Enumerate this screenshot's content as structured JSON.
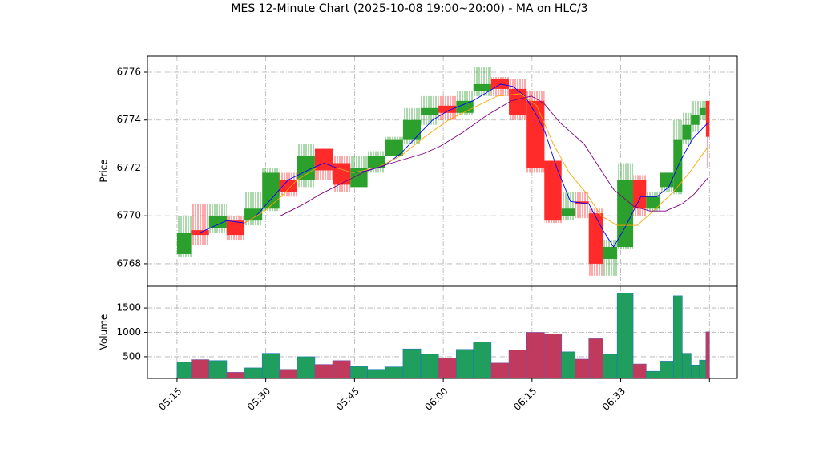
{
  "chart_data": [
    {
      "type": "candlestick",
      "title": "MES 12-Minute Chart (2025-10-08 19:00~20:00) - MA on HLC/3",
      "ylabel": "Price",
      "x": [
        0,
        2.4,
        5.4,
        8.4,
        11.4,
        14.4,
        17.3,
        20.3,
        23.3,
        26.3,
        29.3,
        32.2,
        35.2,
        38.2,
        41.2,
        44.2,
        47.2,
        50.1,
        53.1,
        56.1,
        59.1,
        62.1,
        65.0,
        67.3,
        69.6,
        72.0,
        74.4,
        77.1,
        79.3,
        81.6,
        83.9,
        85.4,
        86.9,
        88.3,
        89.4
      ],
      "open": [
        6768.4,
        6769.4,
        6769.5,
        6769.8,
        6769.8,
        6770.3,
        6771.5,
        6771.5,
        6772.8,
        6772.2,
        6771.2,
        6772.0,
        6772.5,
        6773.2,
        6774.2,
        6774.6,
        6774.3,
        6775.2,
        6775.7,
        6775.3,
        6774.8,
        6772.3,
        6770.0,
        6770.6,
        6770.1,
        6768.2,
        6768.7,
        6771.5,
        6770.3,
        6771.2,
        6771.0,
        6773.2,
        6773.8,
        6774.2,
        6774.8
      ],
      "high": [
        6770.0,
        6770.5,
        6770.5,
        6770.0,
        6771.0,
        6772.0,
        6771.8,
        6773.0,
        6772.8,
        6772.5,
        6772.5,
        6772.7,
        6773.3,
        6774.5,
        6775.0,
        6775.0,
        6775.2,
        6776.2,
        6775.8,
        6775.7,
        6775.2,
        6772.3,
        6771.0,
        6771.0,
        6770.3,
        6769.0,
        6772.2,
        6771.7,
        6771.0,
        6771.8,
        6774.0,
        6774.3,
        6774.8,
        6774.8,
        6774.8
      ],
      "low": [
        6768.3,
        6768.8,
        6769.3,
        6769.0,
        6769.6,
        6770.2,
        6770.8,
        6771.2,
        6771.5,
        6771.0,
        6771.2,
        6771.8,
        6772.5,
        6773.0,
        6773.8,
        6774.0,
        6774.2,
        6775.0,
        6775.0,
        6774.0,
        6771.8,
        6769.7,
        6769.8,
        6769.9,
        6767.5,
        6767.5,
        6768.6,
        6770.0,
        6770.2,
        6771.0,
        6770.9,
        6773.0,
        6773.5,
        6774.0,
        6772.0
      ],
      "close": [
        6769.3,
        6769.2,
        6770.0,
        6769.2,
        6770.3,
        6771.8,
        6771.0,
        6772.5,
        6771.9,
        6771.3,
        6772.0,
        6772.5,
        6773.2,
        6774.0,
        6774.5,
        6774.3,
        6774.8,
        6775.5,
        6775.3,
        6774.2,
        6772.0,
        6769.8,
        6770.3,
        6770.5,
        6768.0,
        6768.7,
        6771.5,
        6770.3,
        6770.8,
        6771.8,
        6773.2,
        6773.8,
        6774.2,
        6774.5,
        6773.3
      ],
      "up_color": "#2ca02c",
      "down_color": "#ff2a2a",
      "series": [
        {
          "color": "#0000ff",
          "x": [
            3.9,
            8.4,
            11.4,
            13.4,
            15.9,
            18.8,
            22.9,
            24.9,
            27.0,
            29.7,
            32.4,
            35.1,
            37.8,
            40.5,
            43.2,
            45.9,
            50.0,
            52.7,
            54.7,
            56.8,
            58.8,
            60.8,
            62.2,
            64.2,
            66.5,
            69.6,
            72.0,
            73.8,
            75.7,
            78.4,
            81.1,
            83.1,
            85.1,
            87.1,
            89.8
          ],
          "values": [
            6769.3,
            6769.8,
            6769.7,
            6770.0,
            6770.7,
            6771.5,
            6772.0,
            6772.2,
            6772.0,
            6771.8,
            6771.9,
            6772.1,
            6772.6,
            6773.3,
            6774.0,
            6774.4,
            6774.8,
            6775.2,
            6775.5,
            6775.4,
            6775.0,
            6774.2,
            6773.5,
            6772.0,
            6770.6,
            6770.5,
            6769.4,
            6768.7,
            6769.5,
            6770.8,
            6770.8,
            6771.2,
            6772.3,
            6773.2,
            6773.9
          ]
        },
        {
          "color": "#ffa500",
          "x": [
            11.4,
            14.8,
            17.6,
            20.3,
            23.6,
            27.0,
            29.7,
            33.7,
            37.8,
            41.9,
            45.9,
            50.0,
            54.1,
            58.1,
            60.8,
            63.6,
            66.3,
            69.0,
            71.7,
            74.4,
            77.8,
            80.5,
            83.9,
            86.6,
            89.8
          ],
          "values": [
            6769.7,
            6770.2,
            6770.8,
            6771.5,
            6772.0,
            6772.0,
            6771.8,
            6772.0,
            6772.5,
            6773.3,
            6774.0,
            6774.5,
            6775.0,
            6775.1,
            6774.6,
            6773.0,
            6771.8,
            6771.0,
            6770.0,
            6769.6,
            6769.6,
            6770.2,
            6771.0,
            6771.8,
            6772.9
          ]
        },
        {
          "color": "#800080",
          "x": [
            17.5,
            21.5,
            24.2,
            28.2,
            32.2,
            37.6,
            41.7,
            44.4,
            48.4,
            52.4,
            56.5,
            59.9,
            62.0,
            64.7,
            68.8,
            73.8,
            77.2,
            79.9,
            82.6,
            85.4,
            87.4,
            89.8
          ],
          "values": [
            6770.0,
            6770.5,
            6770.9,
            6771.4,
            6771.9,
            6772.3,
            6772.6,
            6772.9,
            6773.5,
            6774.2,
            6774.8,
            6775.0,
            6774.7,
            6773.9,
            6773.0,
            6771.1,
            6770.4,
            6770.2,
            6770.2,
            6770.5,
            6770.9,
            6771.6
          ]
        }
      ],
      "xlim": [
        -5,
        94.7
      ],
      "xticks": [
        0,
        15,
        30,
        45,
        60,
        75,
        90
      ],
      "ylim": [
        6767.06,
        6776.67
      ],
      "yticks": [
        6768,
        6770,
        6772,
        6774,
        6776
      ],
      "grid": true
    },
    {
      "type": "bar",
      "ylabel": "Volume",
      "values": [
        390,
        440,
        420,
        180,
        270,
        570,
        240,
        500,
        340,
        420,
        300,
        240,
        290,
        660,
        560,
        470,
        650,
        800,
        370,
        640,
        1000,
        970,
        600,
        450,
        870,
        550,
        1800,
        350,
        200,
        410,
        1750,
        570,
        330,
        430,
        1010
      ],
      "up_color": "#1f9e5e",
      "down_color": "#c03a5e",
      "edge_color": "#1f77b4",
      "xlim": [
        -5,
        94.7
      ],
      "xticks": [
        {
          "value": 0,
          "label": "05:15"
        },
        {
          "value": 15,
          "label": "05:30"
        },
        {
          "value": 30,
          "label": "05:45"
        },
        {
          "value": 45,
          "label": "06:00"
        },
        {
          "value": 60,
          "label": "06:15"
        },
        {
          "value": 75,
          "label": "06:33"
        },
        {
          "value": 90,
          "label": null
        }
      ],
      "ylim": [
        55,
        1945
      ],
      "yticks": [
        500,
        1000,
        1500
      ],
      "grid": true
    }
  ]
}
